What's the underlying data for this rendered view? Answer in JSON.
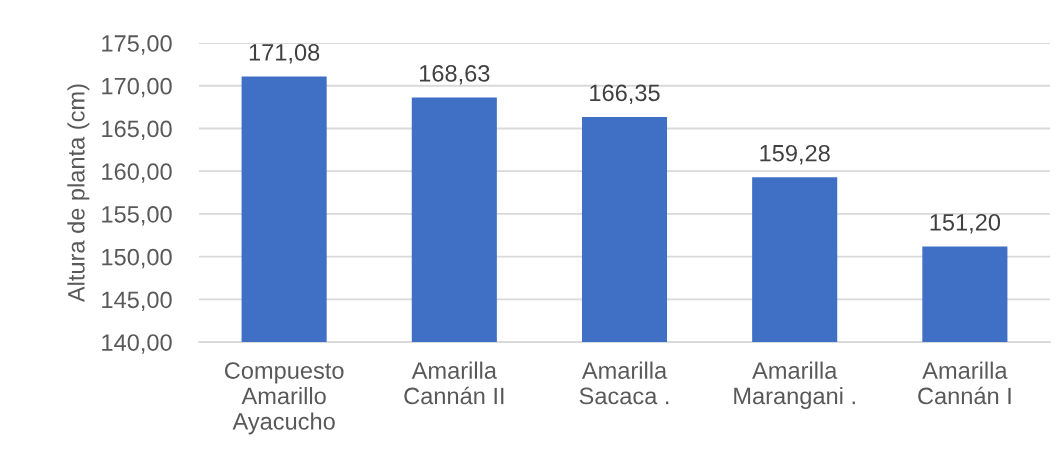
{
  "chart_data": {
    "type": "bar",
    "ylabel": "Altura de planta (cm)",
    "categories": [
      "Compuesto\nAmarillo\nAyacucho",
      "Amarilla\nCannán II",
      "Amarilla\nSacaca .",
      "Amarilla\nMarangani .",
      "Amarilla\nCannán I"
    ],
    "values": [
      171.08,
      168.63,
      166.35,
      159.28,
      151.2
    ],
    "value_labels": [
      "171,08",
      "168,63",
      "166,35",
      "159,28",
      "151,20"
    ],
    "color": "#4070c6",
    "ylim": [
      140,
      175
    ],
    "yticks": [
      {
        "value": 140,
        "label": "140,00"
      },
      {
        "value": 145,
        "label": "145,00"
      },
      {
        "value": 150,
        "label": "150,00"
      },
      {
        "value": 155,
        "label": "155,00"
      },
      {
        "value": 160,
        "label": "160,00"
      },
      {
        "value": 165,
        "label": "165,00"
      },
      {
        "value": 170,
        "label": "170,00"
      },
      {
        "value": 175,
        "label": "175,00"
      }
    ],
    "grid": "y",
    "legend": false
  }
}
